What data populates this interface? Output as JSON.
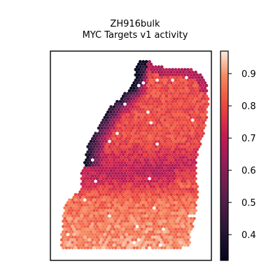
{
  "chart_data": {
    "type": "heatmap",
    "title": "ZH916bulk",
    "subtitle": "MYC Targets v1 activity",
    "xlabel": "",
    "ylabel": "",
    "colorbar": {
      "colormap": "rocket",
      "range": [
        0.32,
        0.97
      ],
      "ticks": [
        0.4,
        0.5,
        0.6,
        0.7,
        0.8,
        0.9
      ],
      "tick_labels": [
        "0.4",
        "0.5",
        "0.6",
        "0.7",
        "0.8",
        "0.9"
      ],
      "location": "right"
    },
    "spots": {
      "shape": "hexagonal grid",
      "approx_value_range": [
        0.35,
        0.95
      ],
      "regions": [
        {
          "region": "top",
          "typical_value": 0.8
        },
        {
          "region": "upper-left edge",
          "typical_value": 0.45
        },
        {
          "region": "middle band",
          "typical_value": 0.7
        },
        {
          "region": "bottom",
          "typical_value": 0.87
        }
      ]
    },
    "grid": false,
    "axes_ticks": false
  }
}
